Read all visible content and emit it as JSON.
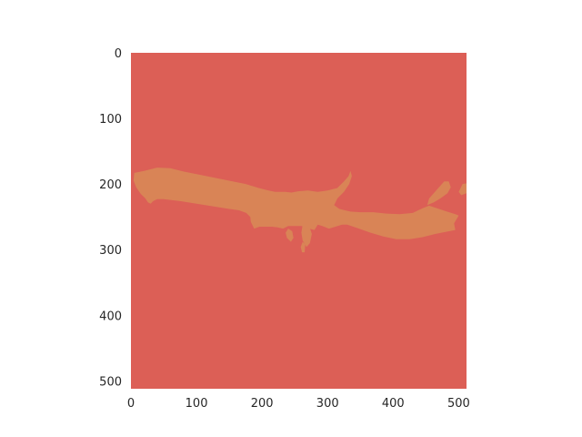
{
  "chart_data": {
    "type": "heatmap",
    "title": "",
    "xlabel": "",
    "ylabel": "",
    "xlim": [
      0,
      512
    ],
    "ylim": [
      512,
      0
    ],
    "x_ticks": [
      "0",
      "100",
      "200",
      "300",
      "400",
      "500"
    ],
    "y_ticks": [
      "0",
      "100",
      "200",
      "300",
      "400",
      "500"
    ],
    "x_tick_values": [
      0,
      100,
      200,
      300,
      400,
      500
    ],
    "y_tick_values": [
      0,
      100,
      200,
      300,
      400,
      500
    ],
    "grid": false,
    "colors": {
      "background_class": "#dc5f56",
      "foreground_class": "#d98456"
    },
    "classes": [
      {
        "value": 0,
        "color": "#dc5f56"
      },
      {
        "value": 1,
        "color": "#d98456"
      }
    ],
    "regions": [
      {
        "class": 1,
        "polygon": [
          [
            5,
            183
          ],
          [
            20,
            180
          ],
          [
            40,
            175
          ],
          [
            60,
            176
          ],
          [
            80,
            181
          ],
          [
            100,
            185
          ],
          [
            125,
            190
          ],
          [
            150,
            195
          ],
          [
            175,
            200
          ],
          [
            195,
            206
          ],
          [
            210,
            210
          ],
          [
            220,
            212
          ],
          [
            235,
            212
          ],
          [
            245,
            213
          ],
          [
            255,
            211
          ],
          [
            270,
            210
          ],
          [
            285,
            212
          ],
          [
            300,
            210
          ],
          [
            315,
            206
          ],
          [
            325,
            196
          ],
          [
            332,
            188
          ],
          [
            335,
            180
          ],
          [
            337,
            188
          ],
          [
            333,
            200
          ],
          [
            325,
            212
          ],
          [
            315,
            222
          ],
          [
            310,
            232
          ],
          [
            318,
            238
          ],
          [
            335,
            242
          ],
          [
            350,
            243
          ],
          [
            370,
            243
          ],
          [
            390,
            245
          ],
          [
            410,
            246
          ],
          [
            430,
            244
          ],
          [
            445,
            237
          ],
          [
            455,
            233
          ],
          [
            470,
            238
          ],
          [
            482,
            242
          ],
          [
            495,
            246
          ],
          [
            500,
            248
          ],
          [
            493,
            260
          ],
          [
            495,
            270
          ],
          [
            480,
            273
          ],
          [
            465,
            276
          ],
          [
            445,
            281
          ],
          [
            425,
            284
          ],
          [
            405,
            284
          ],
          [
            385,
            280
          ],
          [
            365,
            274
          ],
          [
            345,
            267
          ],
          [
            330,
            262
          ],
          [
            322,
            262
          ],
          [
            312,
            265
          ],
          [
            302,
            268
          ],
          [
            292,
            264
          ],
          [
            285,
            262
          ],
          [
            280,
            270
          ],
          [
            272,
            268
          ],
          [
            260,
            264
          ],
          [
            248,
            264
          ],
          [
            240,
            264
          ],
          [
            232,
            268
          ],
          [
            224,
            266
          ],
          [
            215,
            265
          ],
          [
            205,
            265
          ],
          [
            196,
            265
          ],
          [
            188,
            268
          ],
          [
            183,
            258
          ],
          [
            182,
            250
          ],
          [
            176,
            244
          ],
          [
            165,
            240
          ],
          [
            150,
            238
          ],
          [
            125,
            234
          ],
          [
            100,
            230
          ],
          [
            75,
            226
          ],
          [
            50,
            223
          ],
          [
            40,
            223
          ],
          [
            34,
            226
          ],
          [
            30,
            230
          ],
          [
            26,
            228
          ],
          [
            22,
            222
          ],
          [
            15,
            215
          ],
          [
            8,
            205
          ],
          [
            4,
            195
          ]
        ]
      },
      {
        "class": 1,
        "polygon": [
          [
            455,
            222
          ],
          [
            470,
            205
          ],
          [
            478,
            196
          ],
          [
            485,
            196
          ],
          [
            488,
            205
          ],
          [
            483,
            214
          ],
          [
            472,
            222
          ],
          [
            462,
            228
          ],
          [
            452,
            232
          ]
        ]
      },
      {
        "class": 1,
        "polygon": [
          [
            500,
            212
          ],
          [
            506,
            200
          ],
          [
            512,
            199
          ],
          [
            512,
            214
          ],
          [
            504,
            217
          ]
        ]
      },
      {
        "class": 1,
        "polygon": [
          [
            262,
            262
          ],
          [
            272,
            264
          ],
          [
            276,
            276
          ],
          [
            273,
            290
          ],
          [
            268,
            296
          ],
          [
            262,
            286
          ],
          [
            260,
            274
          ]
        ]
      },
      {
        "class": 1,
        "polygon": [
          [
            240,
            268
          ],
          [
            246,
            272
          ],
          [
            248,
            282
          ],
          [
            244,
            288
          ],
          [
            238,
            282
          ],
          [
            236,
            274
          ]
        ]
      },
      {
        "class": 1,
        "polygon": [
          [
            262,
            288
          ],
          [
            266,
            292
          ],
          [
            265,
            304
          ],
          [
            261,
            304
          ],
          [
            259,
            296
          ]
        ]
      }
    ]
  }
}
